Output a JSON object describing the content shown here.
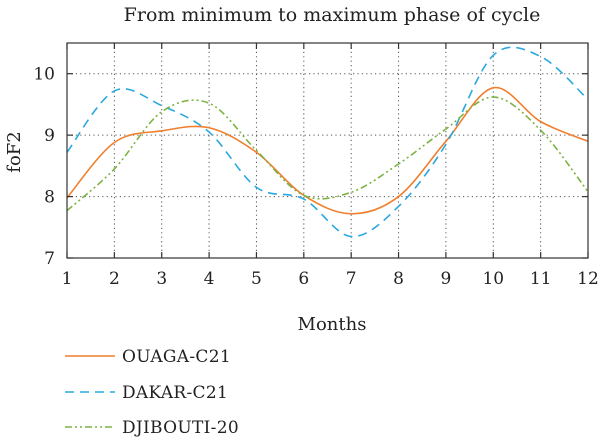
{
  "chart_data": {
    "type": "line",
    "title": "From minimum to maximum phase of cycle",
    "xlabel": "Months",
    "ylabel": "foF2",
    "x": [
      1,
      2,
      3,
      4,
      5,
      6,
      7,
      8,
      9,
      10,
      11,
      12
    ],
    "xticks": [
      "1",
      "2",
      "3",
      "4",
      "5",
      "6",
      "7",
      "8",
      "9",
      "10",
      "11",
      "12"
    ],
    "yticks": [
      "7",
      "8",
      "9",
      "10"
    ],
    "xlim": [
      1,
      12
    ],
    "ylim": [
      7,
      10.5
    ],
    "grid": "dotted",
    "legend_position": "bottom",
    "series": [
      {
        "name": "OUAGA-C21",
        "color": "#f07f2e",
        "dash": "solid",
        "values": [
          7.98,
          8.88,
          9.07,
          9.12,
          8.72,
          8.02,
          7.72,
          8.0,
          8.9,
          9.77,
          9.22,
          8.9
        ]
      },
      {
        "name": "DAKAR-C21",
        "color": "#29a8e0",
        "dash": "dashed",
        "values": [
          8.72,
          9.72,
          9.48,
          9.05,
          8.15,
          7.96,
          7.35,
          7.84,
          8.85,
          10.3,
          10.28,
          9.58
        ]
      },
      {
        "name": "DJIBOUTI-20",
        "color": "#7cb342",
        "dash": "dashdotdot",
        "values": [
          7.77,
          8.45,
          9.38,
          9.52,
          8.75,
          8.02,
          8.07,
          8.53,
          9.1,
          9.62,
          9.08,
          8.08
        ]
      }
    ]
  }
}
